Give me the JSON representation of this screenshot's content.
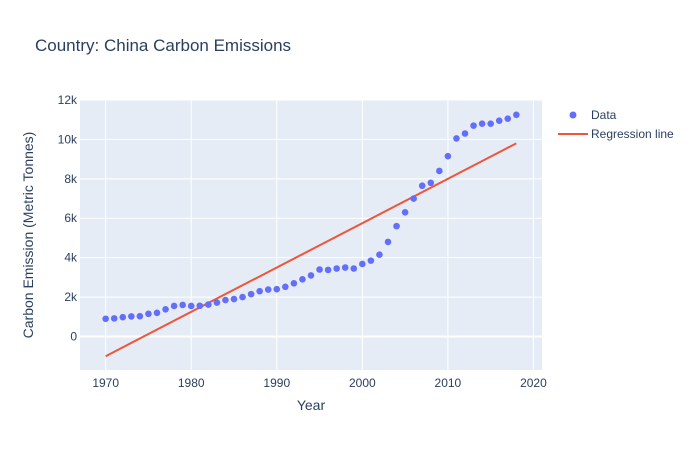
{
  "chart_data": {
    "type": "scatter",
    "title": "Country: China Carbon Emissions",
    "xlabel": "Year",
    "ylabel": "Carbon Emission (Metric Tonnes)",
    "xlim": [
      1967,
      2021
    ],
    "ylim": [
      -1700,
      12000
    ],
    "xticks": [
      1970,
      1980,
      1990,
      2000,
      2010,
      2020
    ],
    "yticks": [
      0,
      2000,
      4000,
      6000,
      8000,
      10000,
      12000
    ],
    "ytick_labels": [
      "0",
      "2k",
      "4k",
      "6k",
      "8k",
      "10k",
      "12k"
    ],
    "series": [
      {
        "name": "Data",
        "mode": "markers",
        "color": "#636efa",
        "x": [
          1970,
          1971,
          1972,
          1973,
          1974,
          1975,
          1976,
          1977,
          1978,
          1979,
          1980,
          1981,
          1982,
          1983,
          1984,
          1985,
          1986,
          1987,
          1988,
          1989,
          1990,
          1991,
          1992,
          1993,
          1994,
          1995,
          1996,
          1997,
          1998,
          1999,
          2000,
          2001,
          2002,
          2003,
          2004,
          2005,
          2006,
          2007,
          2008,
          2009,
          2010,
          2011,
          2012,
          2013,
          2014,
          2015,
          2016,
          2017,
          2018
        ],
        "y": [
          900,
          920,
          980,
          1020,
          1030,
          1150,
          1200,
          1380,
          1550,
          1600,
          1550,
          1560,
          1620,
          1720,
          1850,
          1900,
          2000,
          2150,
          2300,
          2380,
          2400,
          2520,
          2700,
          2900,
          3100,
          3400,
          3380,
          3450,
          3500,
          3450,
          3680,
          3850,
          4150,
          4800,
          5600,
          6300,
          7000,
          7650,
          7800,
          8400,
          9150,
          10050,
          10300,
          10700,
          10800,
          10800,
          10950,
          11050,
          11250
        ]
      },
      {
        "name": "Regression line",
        "mode": "lines",
        "color": "#ef553b",
        "x": [
          1970,
          2018
        ],
        "y": [
          -1000,
          9800
        ]
      }
    ],
    "legend": "top-right"
  }
}
